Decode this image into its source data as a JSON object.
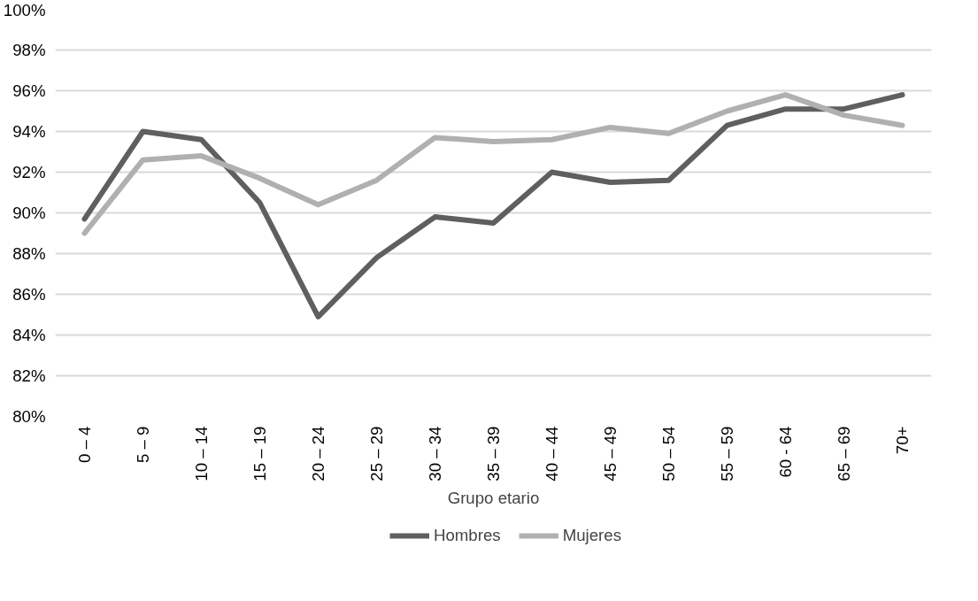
{
  "chart_data": {
    "type": "line",
    "xlabel": "Grupo etario",
    "categories": [
      "0 – 4",
      "5 – 9",
      "10 – 14",
      "15 – 19",
      "20 – 24",
      "25 – 29",
      "30 – 34",
      "35 – 39",
      "40 – 44",
      "45 – 49",
      "50 – 54",
      "55 – 59",
      "60 - 64",
      "65 – 69",
      "70+"
    ],
    "series": [
      {
        "name": "Hombres",
        "color": "#5f5f5f",
        "values": [
          89.7,
          94.0,
          93.6,
          90.5,
          84.9,
          87.8,
          89.8,
          89.5,
          92.0,
          91.5,
          91.6,
          94.3,
          95.1,
          95.1,
          95.8
        ]
      },
      {
        "name": "Mujeres",
        "color": "#b0b0b0",
        "values": [
          89.0,
          92.6,
          92.8,
          91.7,
          90.4,
          91.6,
          93.7,
          93.5,
          93.6,
          94.2,
          93.9,
          95.0,
          95.8,
          94.8,
          94.3
        ]
      }
    ],
    "ylim": [
      80,
      100
    ],
    "yticks": [
      {
        "value": 80,
        "label": "80%"
      },
      {
        "value": 82,
        "label": "82%"
      },
      {
        "value": 84,
        "label": "84%"
      },
      {
        "value": 86,
        "label": "86%"
      },
      {
        "value": 88,
        "label": "88%"
      },
      {
        "value": 90,
        "label": "90%"
      },
      {
        "value": 92,
        "label": "92%"
      },
      {
        "value": 94,
        "label": "94%"
      },
      {
        "value": 96,
        "label": "96%"
      },
      {
        "value": 98,
        "label": "98%"
      },
      {
        "value": 100,
        "label": "100%"
      }
    ],
    "grid": "y",
    "legend": "bottom",
    "marker": "none",
    "line_style": "solid"
  }
}
